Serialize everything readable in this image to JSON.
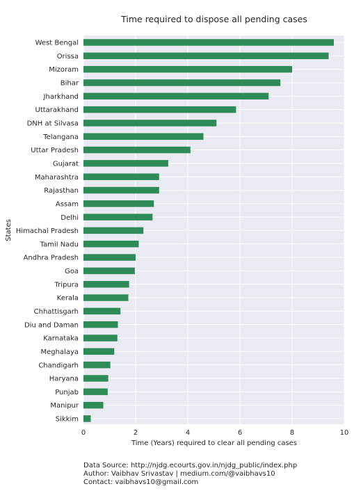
{
  "chart_data": {
    "type": "bar",
    "orientation": "horizontal",
    "title": "Time required to dispose all pending cases",
    "xlabel": "Time (Years) required to clear all pending cases",
    "ylabel": "States",
    "xlim": [
      0,
      10
    ],
    "xticks": [
      0,
      2,
      4,
      6,
      8,
      10
    ],
    "grid": true,
    "categories": [
      "West Bengal",
      "Orissa",
      "Mizoram",
      "Bihar",
      "Jharkhand",
      "Uttarakhand",
      "DNH at Silvasa",
      "Telangana",
      "Uttar Pradesh",
      "Gujarat",
      "Maharashtra",
      "Rajasthan",
      "Assam",
      "Delhi",
      "Himachal Pradesh",
      "Tamil Nadu",
      "Andhra Pradesh",
      "Goa",
      "Tripura",
      "Kerala",
      "Chhattisgarh",
      "Diu and Daman",
      "Karnataka",
      "Meghalaya",
      "Chandigarh",
      "Haryana",
      "Punjab",
      "Manipur",
      "Sikkim"
    ],
    "values": [
      9.6,
      9.4,
      8.0,
      7.55,
      7.1,
      5.85,
      5.1,
      4.6,
      4.1,
      3.25,
      2.9,
      2.9,
      2.7,
      2.65,
      2.3,
      2.12,
      2.0,
      1.97,
      1.75,
      1.72,
      1.42,
      1.32,
      1.3,
      1.18,
      1.03,
      0.95,
      0.93,
      0.76,
      0.28
    ],
    "colors": {
      "bar": "#2e8b57",
      "background": "#eaeaf2",
      "grid": "#ffffff",
      "text": "#262626"
    }
  },
  "footer": {
    "source": "Data Source: http://njdg.ecourts.gov.in/njdg_public/index.php",
    "author": "Author: Vaibhav Srivastav | medium.com/@vaibhavs10",
    "contact": "Contact: vaibhavs10@gmail.com"
  }
}
